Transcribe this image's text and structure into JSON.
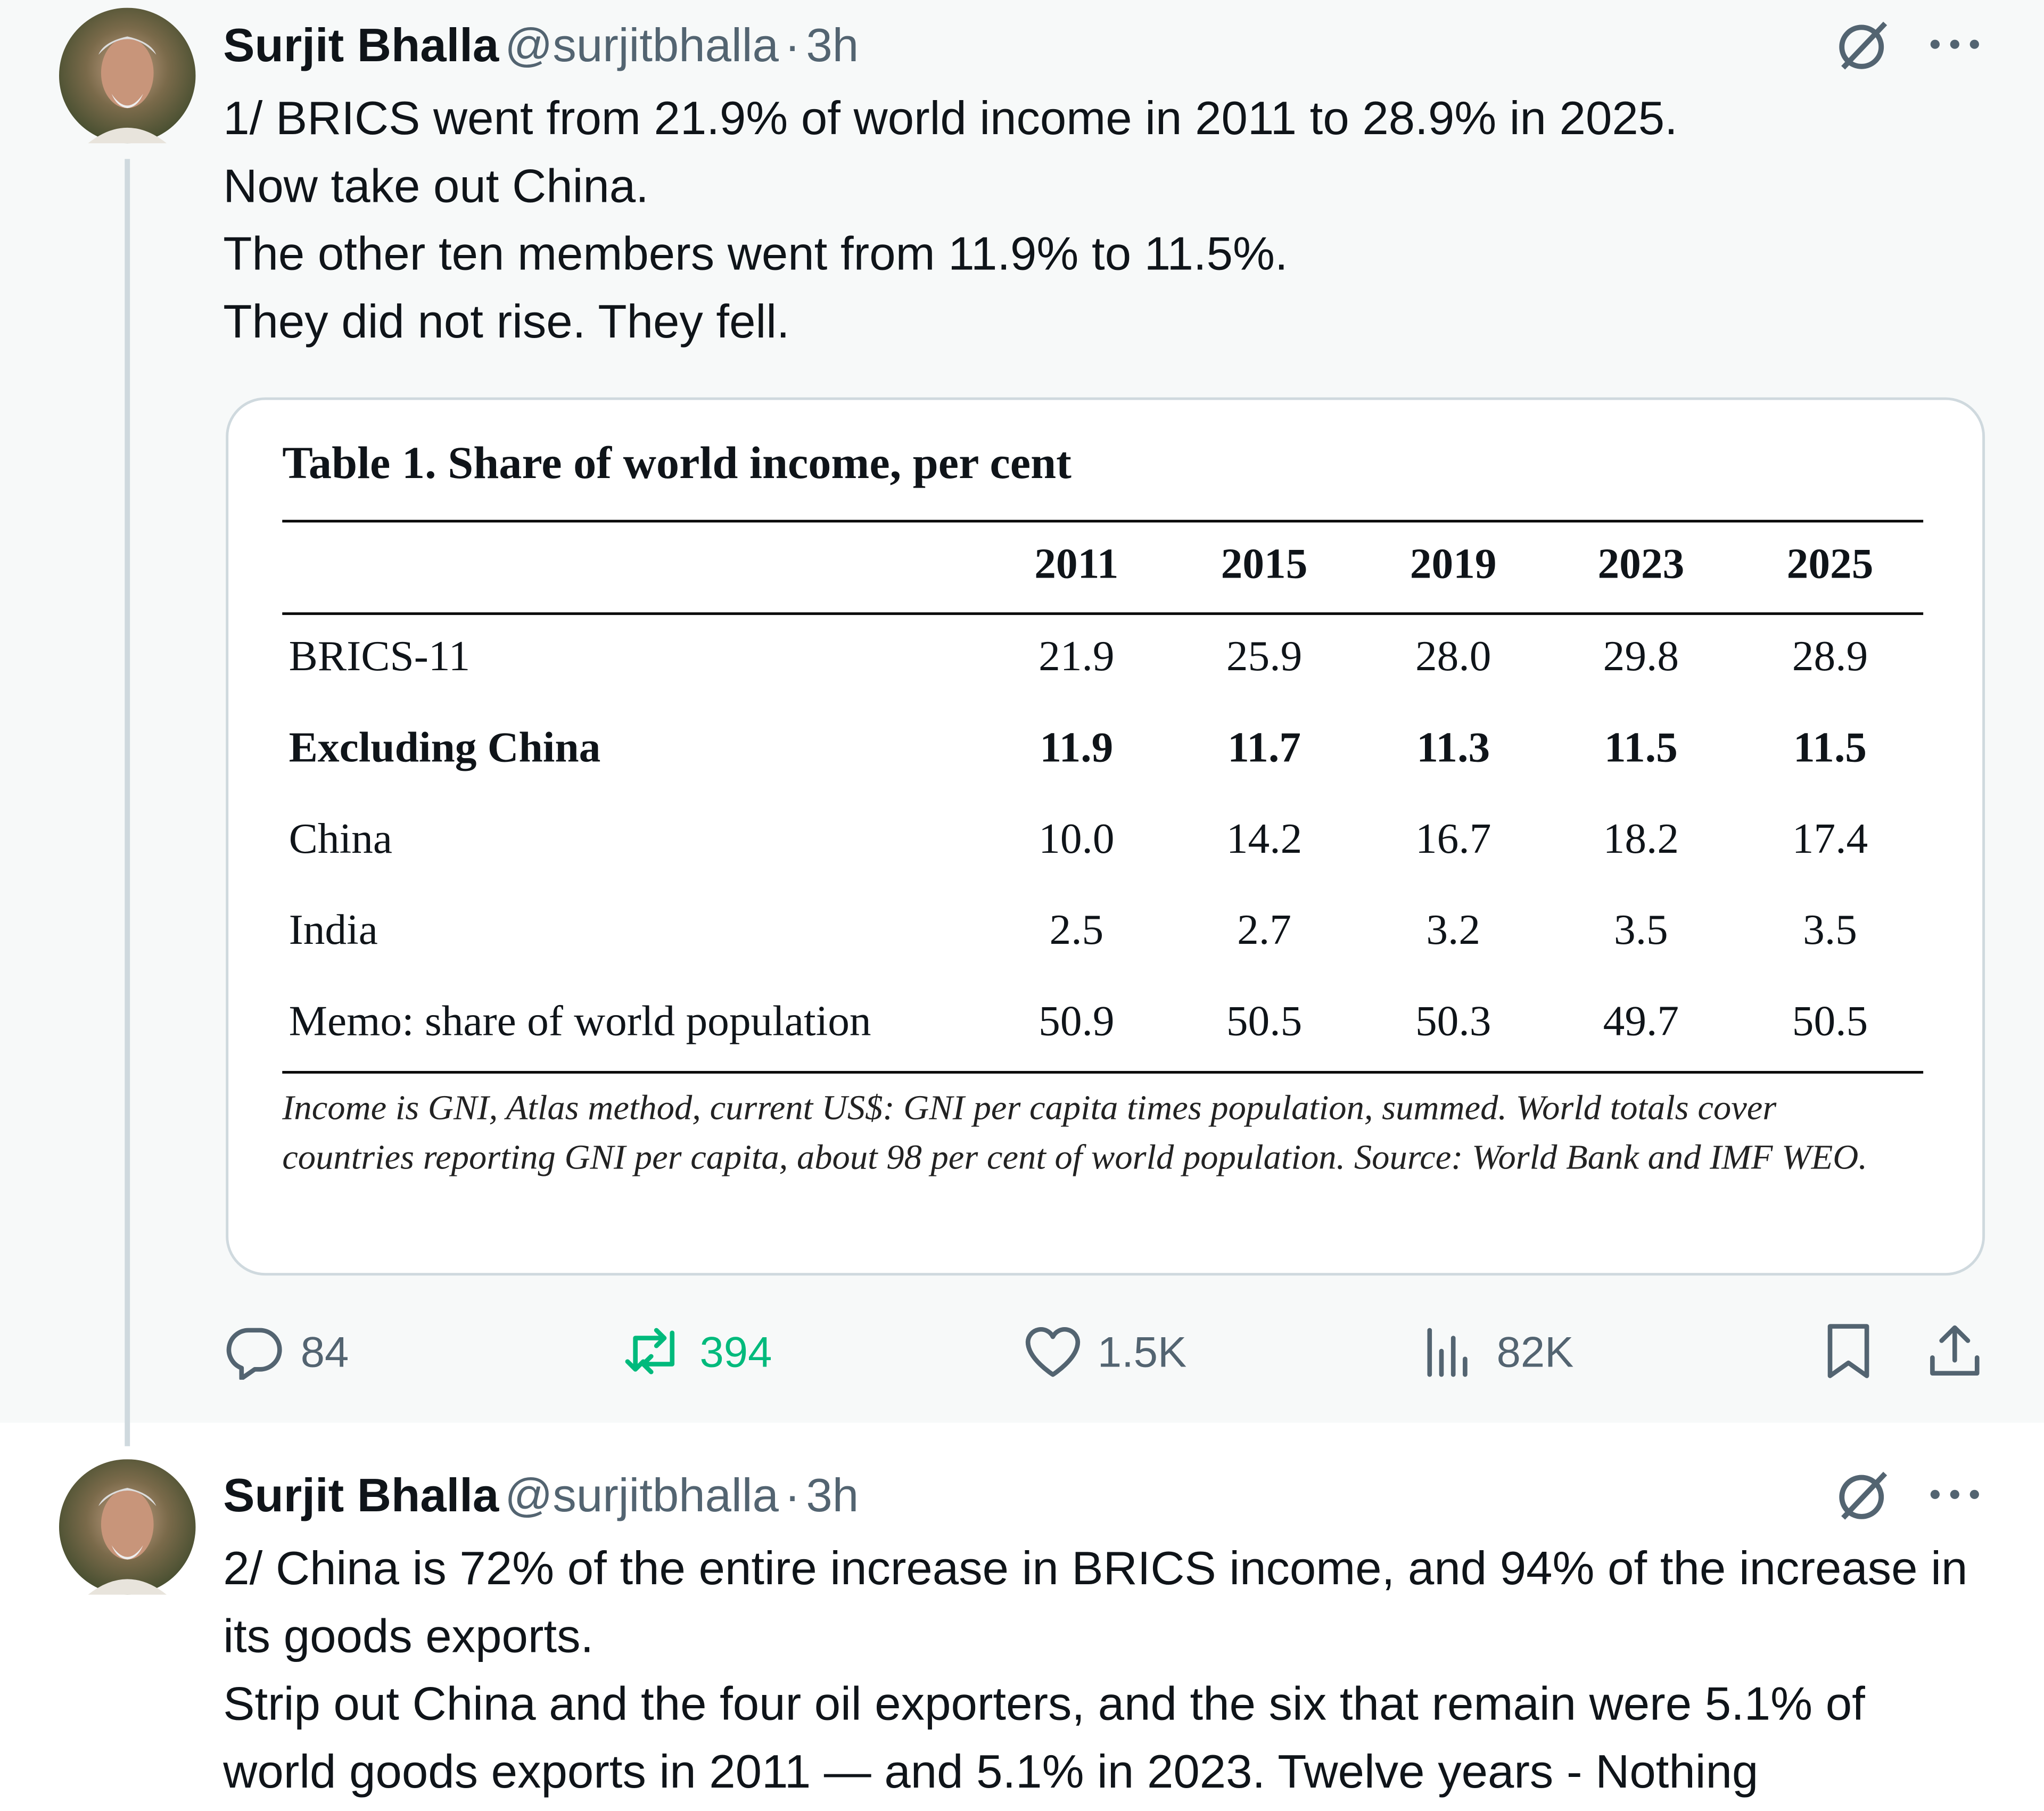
{
  "tweets": [
    {
      "author": "Surjit Bhalla",
      "handle": "@surjitbhalla",
      "separator": "·",
      "time": "3h",
      "lines": [
        "1/ BRICS went from 21.9% of world income in 2011 to 28.9% in 2025.",
        "Now take out China.",
        "The other ten members went from 11.9% to 11.5%.",
        "They did not rise. They fell."
      ],
      "table": {
        "title": "Table 1. Share of world income, per cent",
        "columns": [
          "2011",
          "2015",
          "2019",
          "2023",
          "2025"
        ],
        "rows": [
          {
            "label": "BRICS-11",
            "values": [
              "21.9",
              "25.9",
              "28.0",
              "29.8",
              "28.9"
            ],
            "bold": false
          },
          {
            "label": "Excluding China",
            "values": [
              "11.9",
              "11.7",
              "11.3",
              "11.5",
              "11.5"
            ],
            "bold": true
          },
          {
            "label": "China",
            "values": [
              "10.0",
              "14.2",
              "16.7",
              "18.2",
              "17.4"
            ],
            "bold": false
          },
          {
            "label": "India",
            "values": [
              "2.5",
              "2.7",
              "3.2",
              "3.5",
              "3.5"
            ],
            "bold": false
          },
          {
            "label": "Memo: share of world population",
            "values": [
              "50.9",
              "50.5",
              "50.3",
              "49.7",
              "50.5"
            ],
            "bold": false
          }
        ],
        "note": "Income is GNI, Atlas method, current US$: GNI per capita times population, summed. World totals cover countries reporting GNI per capita, about 98 per cent of world population. Source: World Bank and IMF WEO."
      },
      "stats": {
        "replies": "84",
        "reposts": "394",
        "likes": "1.5K",
        "views": "82K"
      }
    },
    {
      "author": "Surjit Bhalla",
      "handle": "@surjitbhalla",
      "separator": "·",
      "time": "3h",
      "lines": [
        "2/ China is 72% of the entire increase in BRICS income, and 94% of the increase in its goods exports.",
        "Strip out China and the four oil exporters, and the six that remain were 5.1% of world goods exports in 2011 — and 5.1% in 2023. Twelve years - Nothing"
      ]
    }
  ]
}
